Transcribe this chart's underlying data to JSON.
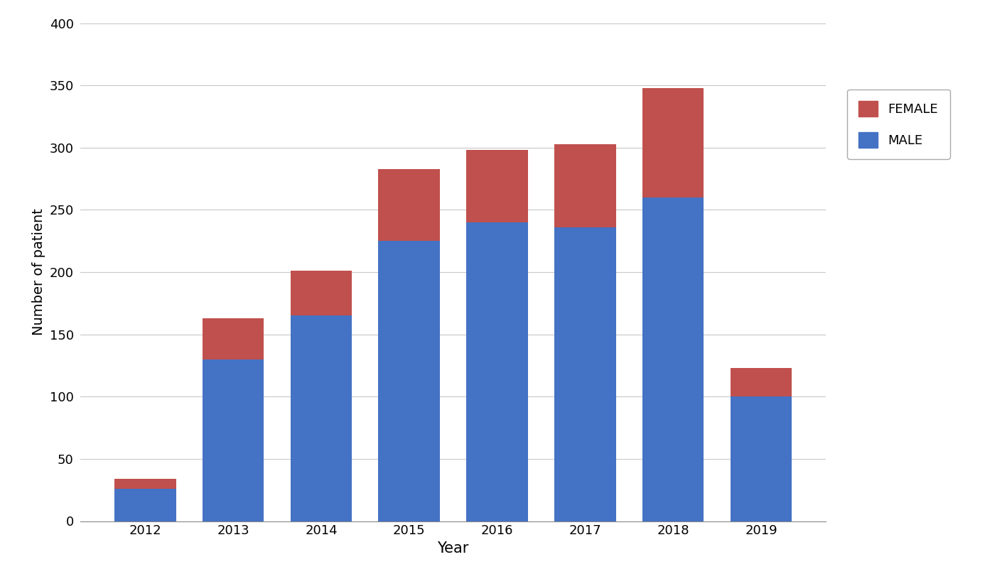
{
  "years": [
    "2012",
    "2013",
    "2014",
    "2015",
    "2016",
    "2017",
    "2018",
    "2019"
  ],
  "male": [
    26,
    130,
    165,
    225,
    240,
    236,
    260,
    100
  ],
  "female": [
    8,
    33,
    36,
    58,
    58,
    67,
    88,
    23
  ],
  "male_color": "#4472C4",
  "female_color": "#C0504D",
  "xlabel": "Year",
  "ylabel": "Number of patient",
  "ylim": [
    0,
    400
  ],
  "yticks": [
    0,
    50,
    100,
    150,
    200,
    250,
    300,
    350,
    400
  ],
  "legend_female": "FEMALE",
  "legend_male": "MALE",
  "bar_width": 0.7,
  "background_color": "#ffffff",
  "grid_color": "#c8c8c8",
  "xlabel_fontsize": 15,
  "ylabel_fontsize": 14,
  "tick_fontsize": 13,
  "legend_fontsize": 13
}
